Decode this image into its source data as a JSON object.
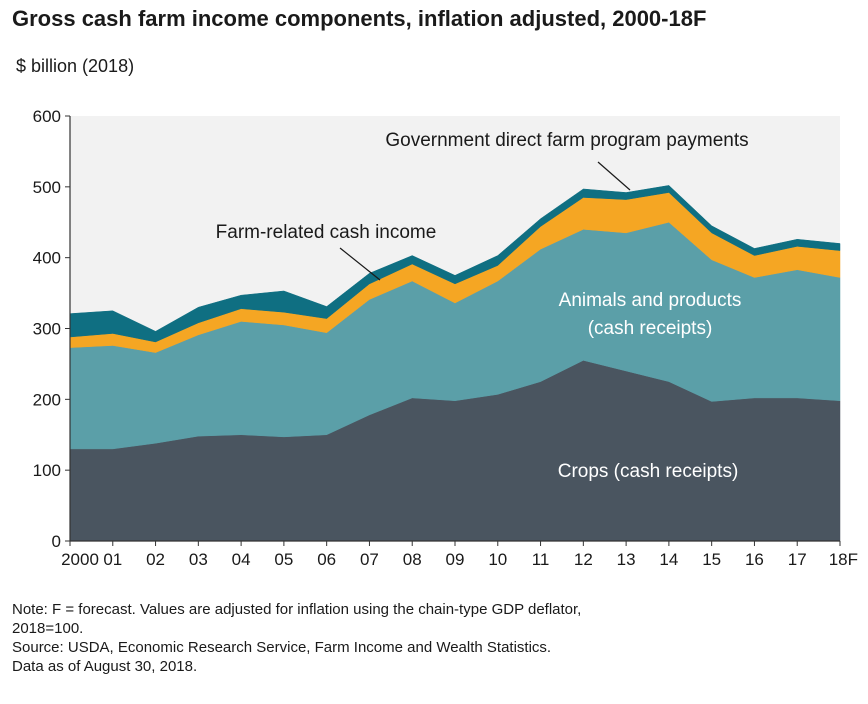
{
  "header": {
    "title": "Gross cash farm income components, inflation adjusted, 2000-18F",
    "subtitle": "$ billion (2018)"
  },
  "chart_data": {
    "type": "area",
    "stacked": true,
    "categories": [
      "2000",
      "01",
      "02",
      "03",
      "04",
      "05",
      "06",
      "07",
      "08",
      "09",
      "10",
      "11",
      "12",
      "13",
      "14",
      "15",
      "16",
      "17",
      "18F"
    ],
    "ylim": [
      0,
      600
    ],
    "yticks": [
      0,
      100,
      200,
      300,
      400,
      500,
      600
    ],
    "grid": false,
    "series": [
      {
        "name": "Crops (cash receipts)",
        "color": "#4a5560",
        "values": [
          130,
          130,
          138,
          148,
          150,
          147,
          150,
          178,
          202,
          198,
          207,
          225,
          255,
          240,
          225,
          197,
          202,
          202,
          198
        ]
      },
      {
        "name": "Animals and products (cash receipts)",
        "color": "#5b9fa8",
        "values": [
          143,
          146,
          128,
          143,
          160,
          158,
          144,
          163,
          165,
          138,
          160,
          187,
          185,
          195,
          225,
          200,
          170,
          181,
          174
        ]
      },
      {
        "name": "Farm-related cash income",
        "color": "#f5a623",
        "values": [
          15,
          17,
          15,
          17,
          18,
          18,
          20,
          22,
          24,
          27,
          22,
          32,
          45,
          47,
          42,
          38,
          31,
          33,
          38
        ]
      },
      {
        "name": "Government direct farm program payments",
        "color": "#0f6f82",
        "values": [
          33,
          32,
          15,
          22,
          19,
          30,
          17,
          15,
          12,
          12,
          14,
          11,
          12,
          10,
          10,
          10,
          10,
          10,
          10
        ]
      }
    ],
    "annotations": [
      {
        "text": "Government direct farm program payments"
      },
      {
        "text": "Farm-related cash income"
      },
      {
        "text": "Animals and products"
      },
      {
        "text": "(cash receipts)"
      },
      {
        "text": "Crops (cash receipts)"
      }
    ]
  },
  "notes": {
    "line1": "Note: F = forecast. Values are adjusted for inflation using the chain-type GDP deflator,",
    "line2": "2018=100.",
    "line3": "Source: USDA, Economic Research Service, Farm Income and Wealth Statistics.",
    "line4": "Data as of August 30, 2018."
  }
}
